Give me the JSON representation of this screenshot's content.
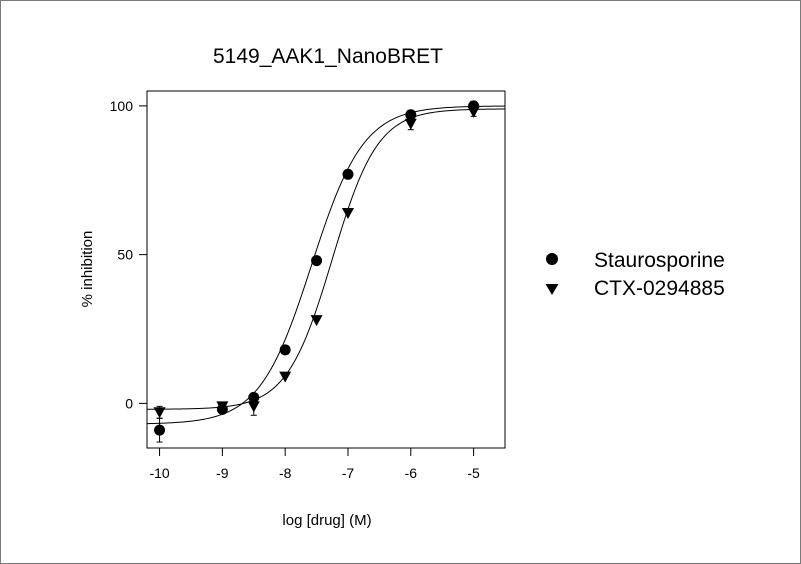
{
  "chart_data": {
    "type": "scatter",
    "title": "5149_AAK1_NanoBRET",
    "xlabel": "log [drug]  (M)",
    "ylabel": "% inhibition",
    "xlim": [
      -10.2,
      -4.5
    ],
    "ylim": [
      -15,
      105
    ],
    "x_ticks": [
      -10,
      -9,
      -8,
      -7,
      -6,
      -5
    ],
    "x_tick_labels": [
      "-10",
      "-9",
      "-8",
      "-7",
      "-6",
      "-5"
    ],
    "y_ticks": [
      0,
      50,
      100
    ],
    "y_tick_labels": [
      "0",
      "50",
      "100"
    ],
    "grid": false,
    "legend": "right",
    "series": [
      {
        "name": "Staurosporine",
        "marker": "circle",
        "x": [
          -10,
          -9,
          -8.5,
          -8,
          -7.5,
          -7,
          -6,
          -5
        ],
        "y": [
          -9,
          -2,
          2,
          18,
          48,
          77,
          97,
          100
        ],
        "err": [
          4,
          1,
          1,
          0,
          0,
          0,
          1.5,
          1.5
        ],
        "fit": {
          "bottom": -7,
          "top": 100,
          "log_ic50": -7.58,
          "hill": 1.05
        }
      },
      {
        "name": "CTX-0294885",
        "marker": "triangle-down",
        "x": [
          -10,
          -9,
          -8.5,
          -8,
          -7.5,
          -7,
          -6,
          -5
        ],
        "y": [
          -3,
          -1,
          -1,
          9,
          28,
          64,
          94,
          98
        ],
        "err": [
          2,
          1,
          3,
          0,
          0,
          0,
          2,
          1.5
        ],
        "fit": {
          "bottom": -2,
          "top": 99,
          "log_ic50": -7.25,
          "hill": 1.2
        }
      }
    ]
  }
}
